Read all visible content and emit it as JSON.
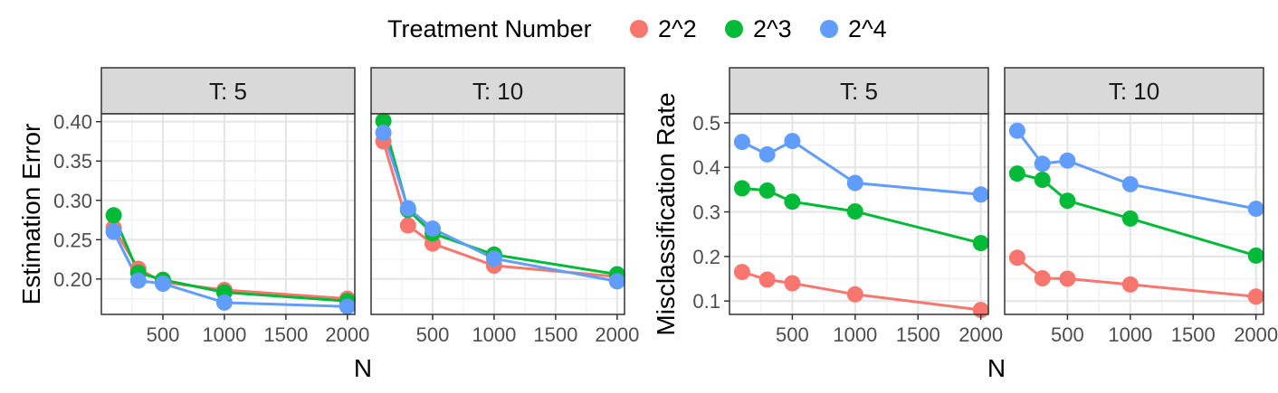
{
  "legend": {
    "title": "Treatment Number",
    "items": [
      {
        "label": "2^2",
        "color": "#F8766D"
      },
      {
        "label": "2^3",
        "color": "#00BA38"
      },
      {
        "label": "2^4",
        "color": "#619CFF"
      }
    ]
  },
  "chart_data": [
    {
      "type": "line",
      "ylabel": "Estimation Error",
      "xlabel": "N",
      "ylim": [
        0.155,
        0.41
      ],
      "xlim": [
        0,
        2060
      ],
      "yticks": [
        0.2,
        0.25,
        0.3,
        0.35,
        0.4
      ],
      "ytick_labels": [
        "0.20",
        "0.25",
        "0.30",
        "0.35",
        "0.40"
      ],
      "xticks": [
        500,
        1000,
        1500,
        2000
      ],
      "xtick_labels": [
        "500",
        "1000",
        "1500",
        "2000"
      ],
      "grid": true,
      "panels": [
        {
          "strip": "T: 5",
          "x": [
            100,
            300,
            500,
            1000,
            2000
          ],
          "series": [
            {
              "name": "2^2",
              "color": "#F8766D",
              "values": [
                0.265,
                0.213,
                0.196,
                0.186,
                0.175
              ]
            },
            {
              "name": "2^3",
              "color": "#00BA38",
              "values": [
                0.281,
                0.208,
                0.199,
                0.183,
                0.172
              ]
            },
            {
              "name": "2^4",
              "color": "#619CFF",
              "values": [
                0.26,
                0.198,
                0.194,
                0.17,
                0.165
              ]
            }
          ]
        },
        {
          "strip": "T: 10",
          "x": [
            100,
            300,
            500,
            1000,
            2000
          ],
          "series": [
            {
              "name": "2^2",
              "color": "#F8766D",
              "values": [
                0.375,
                0.268,
                0.245,
                0.217,
                0.203
              ]
            },
            {
              "name": "2^3",
              "color": "#00BA38",
              "values": [
                0.401,
                0.288,
                0.258,
                0.231,
                0.206
              ]
            },
            {
              "name": "2^4",
              "color": "#619CFF",
              "values": [
                0.386,
                0.29,
                0.264,
                0.226,
                0.197
              ]
            }
          ]
        }
      ]
    },
    {
      "type": "line",
      "ylabel": "Misclassification Rate",
      "xlabel": "N",
      "ylim": [
        0.07,
        0.52
      ],
      "xlim": [
        0,
        2060
      ],
      "yticks": [
        0.1,
        0.2,
        0.3,
        0.4,
        0.5
      ],
      "ytick_labels": [
        "0.1",
        "0.2",
        "0.3",
        "0.4",
        "0.5"
      ],
      "xticks": [
        500,
        1000,
        1500,
        2000
      ],
      "xtick_labels": [
        "500",
        "1000",
        "1500",
        "2000"
      ],
      "grid": true,
      "panels": [
        {
          "strip": "T: 5",
          "x": [
            100,
            300,
            500,
            1000,
            2000
          ],
          "series": [
            {
              "name": "2^2",
              "color": "#F8766D",
              "values": [
                0.165,
                0.148,
                0.14,
                0.115,
                0.08
              ]
            },
            {
              "name": "2^3",
              "color": "#00BA38",
              "values": [
                0.353,
                0.348,
                0.323,
                0.301,
                0.23
              ]
            },
            {
              "name": "2^4",
              "color": "#619CFF",
              "values": [
                0.457,
                0.429,
                0.459,
                0.365,
                0.339
              ]
            }
          ]
        },
        {
          "strip": "T: 10",
          "x": [
            100,
            300,
            500,
            1000,
            2000
          ],
          "series": [
            {
              "name": "2^2",
              "color": "#F8766D",
              "values": [
                0.197,
                0.151,
                0.15,
                0.137,
                0.11
              ]
            },
            {
              "name": "2^3",
              "color": "#00BA38",
              "values": [
                0.386,
                0.372,
                0.325,
                0.285,
                0.202
              ]
            },
            {
              "name": "2^4",
              "color": "#619CFF",
              "values": [
                0.482,
                0.408,
                0.415,
                0.362,
                0.307
              ]
            }
          ]
        }
      ]
    }
  ]
}
